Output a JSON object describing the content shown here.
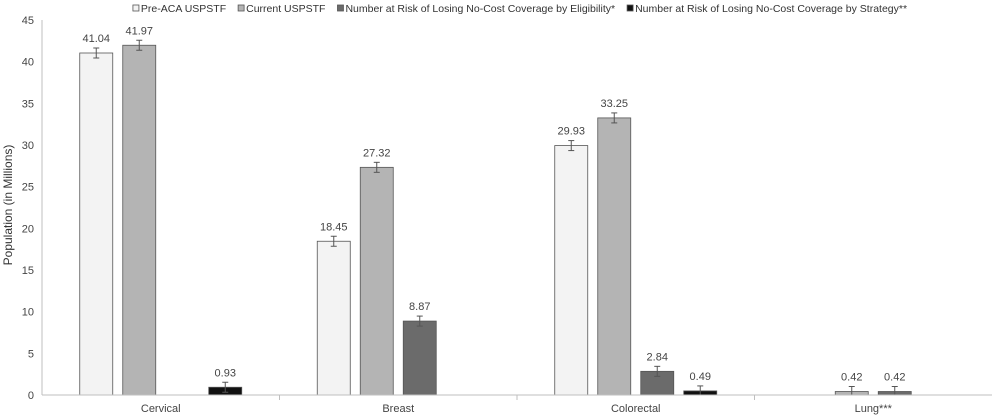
{
  "chart_data": {
    "type": "bar",
    "title": "",
    "xlabel": "",
    "ylabel": "Population (in Millions)",
    "ylim": [
      0,
      45
    ],
    "yticks": [
      0,
      5,
      10,
      15,
      20,
      25,
      30,
      35,
      40,
      45
    ],
    "grid": false,
    "legend_position": "top",
    "categories": [
      "Cervical",
      "Breast",
      "Colorectal",
      "Lung***"
    ],
    "series": [
      {
        "name": "Pre-ACA USPSTF",
        "color": "#f3f3f3",
        "values": [
          41.04,
          18.45,
          29.93,
          null
        ],
        "labels": [
          "41.04",
          "18.45",
          "29.93",
          ""
        ]
      },
      {
        "name": "Current USPSTF",
        "color": "#b4b4b4",
        "values": [
          41.97,
          27.32,
          33.25,
          0.42
        ],
        "labels": [
          "41.97",
          "27.32",
          "33.25",
          "0.42"
        ]
      },
      {
        "name": "Number at Risk of Losing No-Cost Coverage by Eligibility*",
        "color": "#6b6b6b",
        "values": [
          null,
          8.87,
          2.84,
          0.42
        ],
        "labels": [
          "",
          "8.87",
          "2.84",
          "0.42"
        ]
      },
      {
        "name": "Number at Risk of Losing No-Cost Coverage by Strategy**",
        "color": "#111111",
        "values": [
          0.93,
          null,
          0.49,
          null
        ],
        "labels": [
          "0.93",
          "",
          "0.49",
          ""
        ]
      }
    ]
  }
}
